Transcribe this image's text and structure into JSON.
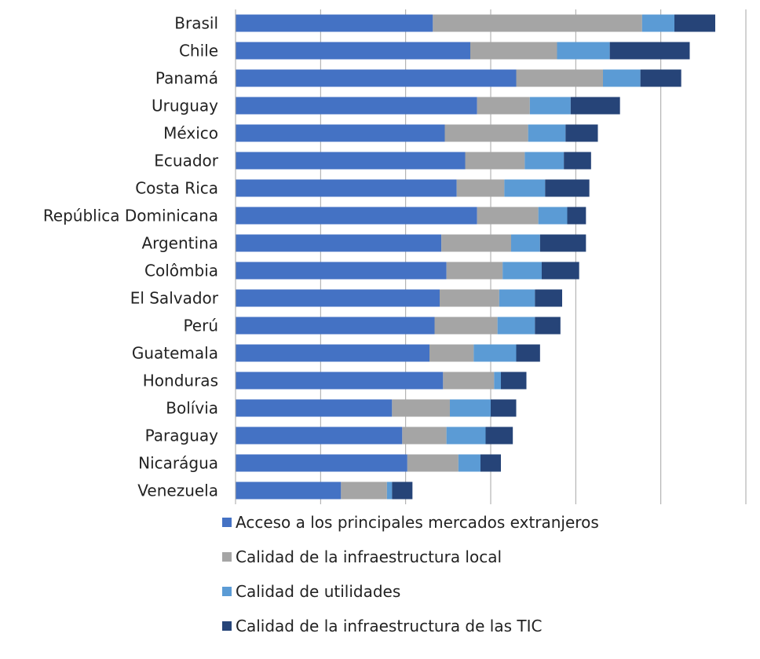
{
  "chart_data": {
    "type": "bar",
    "orientation": "horizontal",
    "stacked": true,
    "categories": [
      "Brasil",
      "Chile",
      "Panamá",
      "Uruguay",
      "México",
      "Ecuador",
      "Costa Rica",
      "República Dominicana",
      "Argentina",
      "Colômbia",
      "El Salvador",
      "Perú",
      "Guatemala",
      "Honduras",
      "Bolívia",
      "Paraguay",
      "Nicarágua",
      "Venezuela"
    ],
    "series": [
      {
        "name": "Acceso a los principales mercados extranjeros",
        "color": "#4472c4",
        "values": [
          11.6,
          13.8,
          16.5,
          14.2,
          12.3,
          13.5,
          13.0,
          14.2,
          12.1,
          12.4,
          12.0,
          11.7,
          11.4,
          12.2,
          9.2,
          9.8,
          10.1,
          6.2
        ]
      },
      {
        "name": "Calidad de la infraestructura local",
        "color": "#a5a5a5",
        "values": [
          12.3,
          5.1,
          5.1,
          3.1,
          4.9,
          3.5,
          2.8,
          3.6,
          4.1,
          3.3,
          3.5,
          3.7,
          2.6,
          3.0,
          3.4,
          2.6,
          3.0,
          2.7
        ]
      },
      {
        "name": "Calidad de utilidades",
        "color": "#5b9bd5",
        "values": [
          1.9,
          3.1,
          2.2,
          2.4,
          2.2,
          2.3,
          2.4,
          1.7,
          1.7,
          2.3,
          2.1,
          2.2,
          2.5,
          0.4,
          2.4,
          2.3,
          1.3,
          0.3
        ]
      },
      {
        "name": "Calidad de la infraestructura de las TIC",
        "color": "#264478",
        "values": [
          2.4,
          4.7,
          2.4,
          2.9,
          1.9,
          1.6,
          2.6,
          1.1,
          2.7,
          2.2,
          1.6,
          1.5,
          1.4,
          1.5,
          1.5,
          1.6,
          1.2,
          1.2
        ]
      }
    ],
    "xlim": [
      0,
      30
    ],
    "xticks": [
      "0",
      "5",
      "10",
      "15",
      "20",
      "25",
      "30"
    ],
    "grid": "vertical",
    "legend_position": "bottom"
  }
}
